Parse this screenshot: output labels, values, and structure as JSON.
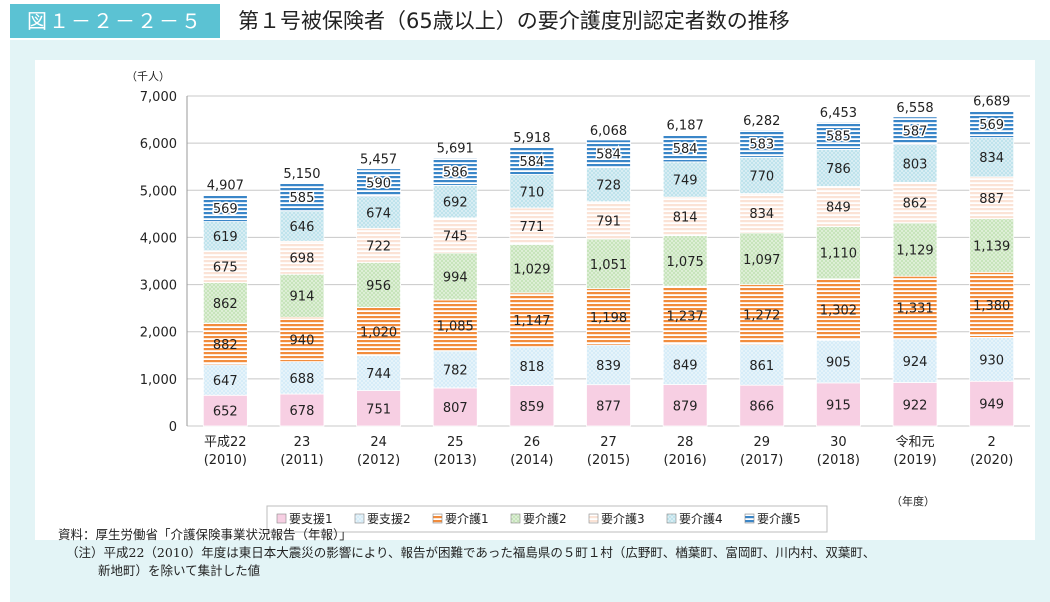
{
  "header": {
    "figure_number": "図１－２－２－５",
    "title": "第１号被保険者（65歳以上）の要介護度別認定者数の推移"
  },
  "chart_data": {
    "type": "bar",
    "stacked": true,
    "unit_label": "（千人）",
    "x_unit_label": "（年度）",
    "ylim": [
      0,
      7000
    ],
    "yticks": [
      "0",
      "1,000",
      "2,000",
      "3,000",
      "4,000",
      "5,000",
      "6,000",
      "7,000"
    ],
    "ytick_values": [
      0,
      1000,
      2000,
      3000,
      4000,
      5000,
      6000,
      7000
    ],
    "categories": [
      {
        "line1": "平成22",
        "line2": "(2010)"
      },
      {
        "line1": "23",
        "line2": "(2011)"
      },
      {
        "line1": "24",
        "line2": "(2012)"
      },
      {
        "line1": "25",
        "line2": "(2013)"
      },
      {
        "line1": "26",
        "line2": "(2014)"
      },
      {
        "line1": "27",
        "line2": "(2015)"
      },
      {
        "line1": "28",
        "line2": "(2016)"
      },
      {
        "line1": "29",
        "line2": "(2017)"
      },
      {
        "line1": "30",
        "line2": "(2018)"
      },
      {
        "line1": "令和元",
        "line2": "(2019)"
      },
      {
        "line1": "2",
        "line2": "(2020)"
      }
    ],
    "series": [
      {
        "name": "要支援1",
        "color": "#f7cfe3",
        "pattern": "solid",
        "values": [
          652,
          678,
          751,
          807,
          859,
          877,
          879,
          866,
          915,
          922,
          949
        ]
      },
      {
        "name": "要支援2",
        "color": "#d6ecf8",
        "pattern": "dots",
        "values": [
          647,
          688,
          744,
          782,
          818,
          839,
          849,
          861,
          905,
          924,
          930
        ]
      },
      {
        "name": "要介護1",
        "color": "#f28c3c",
        "pattern": "hstripes",
        "values": [
          882,
          940,
          1020,
          1085,
          1147,
          1198,
          1237,
          1272,
          1302,
          1331,
          1380
        ]
      },
      {
        "name": "要介護2",
        "color": "#c7e4bb",
        "pattern": "dots",
        "values": [
          862,
          914,
          956,
          994,
          1029,
          1051,
          1075,
          1097,
          1110,
          1129,
          1139
        ]
      },
      {
        "name": "要介護3",
        "color": "#fbe3d6",
        "pattern": "hstripes",
        "values": [
          675,
          698,
          722,
          745,
          771,
          791,
          814,
          834,
          849,
          862,
          887
        ]
      },
      {
        "name": "要介護4",
        "color": "#bfe3ec",
        "pattern": "dots",
        "values": [
          619,
          646,
          674,
          692,
          710,
          728,
          749,
          770,
          786,
          803,
          834
        ]
      },
      {
        "name": "要介護5",
        "color": "#3a86c8",
        "pattern": "hstripes",
        "values": [
          569,
          585,
          590,
          586,
          584,
          584,
          584,
          583,
          585,
          587,
          569
        ]
      }
    ],
    "value_labels": [
      [
        "652",
        "678",
        "751",
        "807",
        "859",
        "877",
        "879",
        "866",
        "915",
        "922",
        "949"
      ],
      [
        "647",
        "688",
        "744",
        "782",
        "818",
        "839",
        "849",
        "861",
        "905",
        "924",
        "930"
      ],
      [
        "882",
        "940",
        "1,020",
        "1,085",
        "1,147",
        "1,198",
        "1,237",
        "1,272",
        "1,302",
        "1,331",
        "1,380"
      ],
      [
        "862",
        "914",
        "956",
        "994",
        "1,029",
        "1,051",
        "1,075",
        "1,097",
        "1,110",
        "1,129",
        "1,139"
      ],
      [
        "675",
        "698",
        "722",
        "745",
        "771",
        "791",
        "814",
        "834",
        "849",
        "862",
        "887"
      ],
      [
        "619",
        "646",
        "674",
        "692",
        "710",
        "728",
        "749",
        "770",
        "786",
        "803",
        "834"
      ],
      [
        "569",
        "585",
        "590",
        "586",
        "584",
        "584",
        "584",
        "583",
        "585",
        "587",
        "569"
      ]
    ],
    "totals": [
      4907,
      5150,
      5457,
      5691,
      5918,
      6068,
      6187,
      6282,
      6453,
      6558,
      6689
    ],
    "total_labels": [
      "4,907",
      "5,150",
      "5,457",
      "5,691",
      "5,918",
      "6,068",
      "6,187",
      "6,282",
      "6,453",
      "6,558",
      "6,689"
    ],
    "grid": true,
    "legend_position": "bottom-center"
  },
  "notes": {
    "source": "資料：厚生労働省「介護保険事業状況報告（年報）」",
    "note_line1": "（注）平成22（2010）年度は東日本大震災の影響により、報告が困難であった福島県の５町１村（広野町、楢葉町、富岡町、川内村、双葉町、",
    "note_line2": "新地町）を除いて集計した値"
  }
}
